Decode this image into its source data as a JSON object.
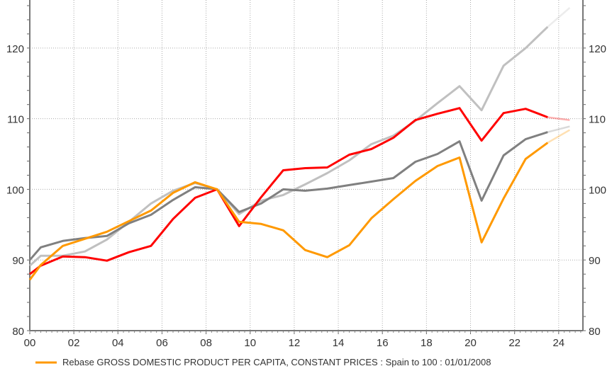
{
  "chart_data": {
    "type": "line",
    "title": "",
    "xlabel": "",
    "ylabel": "",
    "xlim": [
      2000,
      2025.1
    ],
    "ylim": [
      80,
      126.8
    ],
    "grid": true,
    "x_tick_labels": [
      "00",
      "02",
      "04",
      "06",
      "08",
      "10",
      "12",
      "14",
      "16",
      "18",
      "20",
      "22",
      "24"
    ],
    "x_tick_years": [
      2000,
      2002,
      2004,
      2006,
      2008,
      2010,
      2012,
      2014,
      2016,
      2018,
      2020,
      2022,
      2024
    ],
    "y_ticks": [
      80,
      90,
      100,
      110,
      120
    ],
    "y_tick_labels": [
      "80",
      "90",
      "100",
      "110",
      "120"
    ],
    "legend_position": "bottom",
    "legend": [
      {
        "label": "Rebase GROSS DOMESTIC PRODUCT PER CAPITA, CONSTANT PRICES : Spain to 100 : 01/01/2008",
        "color": "#FF9900"
      }
    ],
    "x": [
      2000.0,
      2000.5,
      2001.5,
      2002.5,
      2003.5,
      2004.5,
      2005.5,
      2006.5,
      2007.5,
      2008.5,
      2009.5,
      2010.5,
      2011.5,
      2012.5,
      2013.5,
      2014.5,
      2015.5,
      2016.5,
      2017.5,
      2018.5,
      2019.5,
      2020.5,
      2021.5,
      2022.5,
      2023.5,
      2024.5
    ],
    "forecast_from_x": 2023.5,
    "series": [
      {
        "color": "#C0C0C0",
        "values": [
          89.2,
          90.6,
          90.6,
          91.2,
          92.9,
          95.4,
          98.0,
          99.8,
          100.9,
          100,
          96.5,
          98.4,
          99.2,
          100.7,
          102.3,
          104.1,
          106.4,
          107.6,
          109.7,
          112.2,
          114.6,
          111.2,
          117.5,
          120.0,
          123.0,
          125.7
        ]
      },
      {
        "color": "#808080",
        "values": [
          90.0,
          91.8,
          92.7,
          93.1,
          93.4,
          95.2,
          96.4,
          98.5,
          100.3,
          100,
          96.8,
          98.0,
          100.0,
          99.8,
          100.1,
          100.6,
          101.1,
          101.6,
          103.9,
          105.0,
          106.8,
          98.4,
          104.8,
          107.1,
          108.1,
          108.9
        ]
      },
      {
        "color": "#FF0000",
        "values": [
          88.0,
          89.2,
          90.5,
          90.4,
          89.9,
          91.1,
          92.0,
          95.8,
          98.8,
          100,
          94.8,
          98.9,
          102.7,
          103.0,
          103.1,
          104.9,
          105.7,
          107.3,
          109.8,
          110.7,
          111.5,
          106.9,
          110.8,
          111.4,
          110.2,
          109.8
        ]
      },
      {
        "color": "#FF9900",
        "values": [
          87.2,
          89.3,
          92.0,
          93.0,
          94.0,
          95.5,
          97.0,
          99.5,
          101.0,
          100,
          95.4,
          95.1,
          94.2,
          91.4,
          90.4,
          92.1,
          95.9,
          98.6,
          101.2,
          103.3,
          104.5,
          92.5,
          98.7,
          104.3,
          106.6,
          108.4
        ]
      }
    ]
  }
}
